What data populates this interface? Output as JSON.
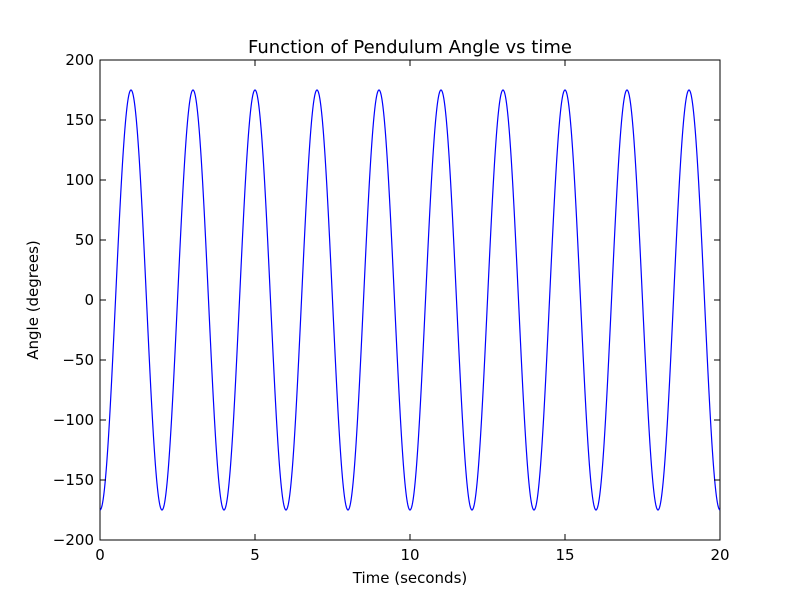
{
  "chart_data": {
    "type": "line",
    "title": "Function of Pendulum Angle vs time",
    "xlabel": "Time (seconds)",
    "ylabel": "Angle (degrees)",
    "xlim": [
      0,
      20
    ],
    "ylim": [
      -200,
      200
    ],
    "xticks": [
      0,
      5,
      10,
      15,
      20
    ],
    "xtick_labels": [
      "0",
      "5",
      "10",
      "15",
      "20"
    ],
    "yticks": [
      -200,
      -150,
      -100,
      -50,
      0,
      50,
      100,
      150,
      200
    ],
    "ytick_labels": [
      "−200",
      "−150",
      "−100",
      "−50",
      "0",
      "50",
      "100",
      "150",
      "200"
    ],
    "grid": false,
    "legend": "none",
    "series": [
      {
        "color": "#0000ff",
        "x": [
          0.0,
          0.5,
          1.0,
          1.5,
          2.0,
          2.5,
          3.0,
          3.5,
          4.0,
          4.5,
          5.0,
          5.5,
          6.0,
          6.5,
          7.0,
          7.5,
          8.0,
          8.5,
          9.0,
          9.5,
          10.0,
          10.5,
          11.0,
          11.5,
          12.0,
          12.5,
          13.0,
          13.5,
          14.0,
          14.5,
          15.0,
          15.5,
          16.0,
          16.5,
          17.0,
          17.5,
          18.0,
          18.5,
          19.0,
          19.5,
          20.0
        ],
        "values": [
          -175,
          0,
          175,
          0,
          -175,
          0,
          175,
          0,
          -175,
          0,
          175,
          0,
          -175,
          0,
          175,
          0,
          -175,
          0,
          175,
          0,
          -175,
          0,
          175,
          0,
          -175,
          0,
          175,
          0,
          -175,
          0,
          175,
          0,
          -175,
          0,
          175,
          0,
          -175,
          0,
          175,
          0,
          -175
        ]
      }
    ]
  }
}
